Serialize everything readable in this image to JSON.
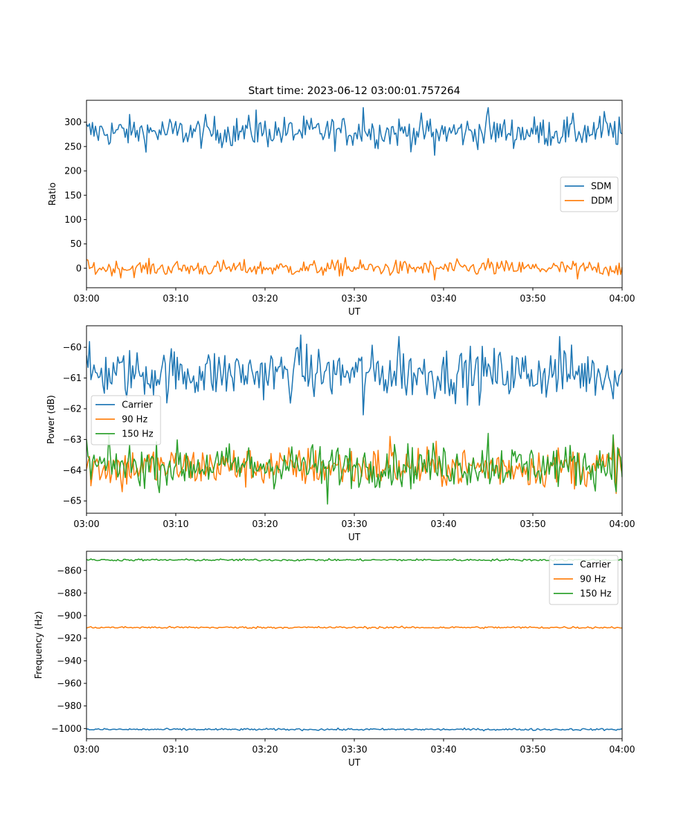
{
  "figure": {
    "title": "Start time: 2023-06-12 03:00:01.757264"
  },
  "colors": {
    "blue": "#1f77b4",
    "orange": "#ff7f0e",
    "green": "#2ca02c"
  },
  "chart_data": [
    {
      "type": "line",
      "id": "ratio",
      "title": "Start time: 2023-06-12 03:00:01.757264",
      "xlabel": "UT",
      "ylabel": "Ratio",
      "xlim": [
        "03:00",
        "04:00"
      ],
      "ylim": [
        -40,
        345
      ],
      "xticks": [
        "03:00",
        "03:10",
        "03:20",
        "03:30",
        "03:40",
        "03:50",
        "04:00"
      ],
      "yticks": [
        0,
        50,
        100,
        150,
        200,
        250,
        300
      ],
      "legend": "center-right",
      "series": [
        {
          "name": "SDM",
          "color": "#1f77b4",
          "mean": 280,
          "noise": 16,
          "points": [
            [
              "03:39",
              232
            ],
            [
              "03:31",
              330
            ],
            [
              "03:45",
              330
            ],
            [
              "03:19",
              325
            ],
            [
              "03:58",
              322
            ]
          ]
        },
        {
          "name": "DDM",
          "color": "#ff7f0e",
          "mean": 0,
          "noise": 8,
          "points": [
            [
              "03:39",
              -24
            ],
            [
              "03:55",
              -22
            ],
            [
              "03:29",
              22
            ],
            [
              "03:45",
              20
            ],
            [
              "03:00",
              18
            ]
          ]
        }
      ]
    },
    {
      "type": "line",
      "id": "power",
      "xlabel": "UT",
      "ylabel": "Power (dB)",
      "xlim": [
        "03:00",
        "04:00"
      ],
      "ylim": [
        -65.4,
        -59.3
      ],
      "xticks": [
        "03:00",
        "03:10",
        "03:20",
        "03:30",
        "03:40",
        "03:50",
        "04:00"
      ],
      "yticks": [
        -65,
        -64,
        -63,
        -62,
        -61,
        -60
      ],
      "legend": "center-left",
      "series": [
        {
          "name": "Carrier",
          "color": "#1f77b4",
          "mean": -60.85,
          "noise": 0.42,
          "points": [
            [
              "03:31",
              -62.2
            ],
            [
              "03:24",
              -59.6
            ],
            [
              "03:35",
              -59.65
            ],
            [
              "03:53",
              -59.65
            ]
          ]
        },
        {
          "name": "90 Hz",
          "color": "#ff7f0e",
          "mean": -63.9,
          "noise": 0.33,
          "points": [
            [
              "03:04",
              -64.7
            ],
            [
              "03:34",
              -62.9
            ],
            [
              "03:59",
              -62.9
            ]
          ]
        },
        {
          "name": "150 Hz",
          "color": "#2ca02c",
          "mean": -63.85,
          "noise": 0.35,
          "points": [
            [
              "03:27",
              -65.1
            ],
            [
              "03:00",
              -63.0
            ],
            [
              "03:45",
              -62.8
            ],
            [
              "03:59",
              -62.85
            ]
          ]
        }
      ]
    },
    {
      "type": "line",
      "id": "frequency",
      "xlabel": "UT",
      "ylabel": "Frequency (Hz)",
      "xlim": [
        "03:00",
        "04:00"
      ],
      "ylim": [
        -1009,
        -843
      ],
      "xticks": [
        "03:00",
        "03:10",
        "03:20",
        "03:30",
        "03:40",
        "03:50",
        "04:00"
      ],
      "yticks": [
        -1000,
        -980,
        -960,
        -940,
        -920,
        -900,
        -880,
        -860
      ],
      "legend": "upper-right",
      "series": [
        {
          "name": "Carrier",
          "color": "#1f77b4",
          "mean": -1000.8,
          "noise": 0.45
        },
        {
          "name": "90 Hz",
          "color": "#ff7f0e",
          "mean": -910.5,
          "noise": 0.45
        },
        {
          "name": "150 Hz",
          "color": "#2ca02c",
          "mean": -850.7,
          "noise": 0.45
        }
      ]
    }
  ]
}
